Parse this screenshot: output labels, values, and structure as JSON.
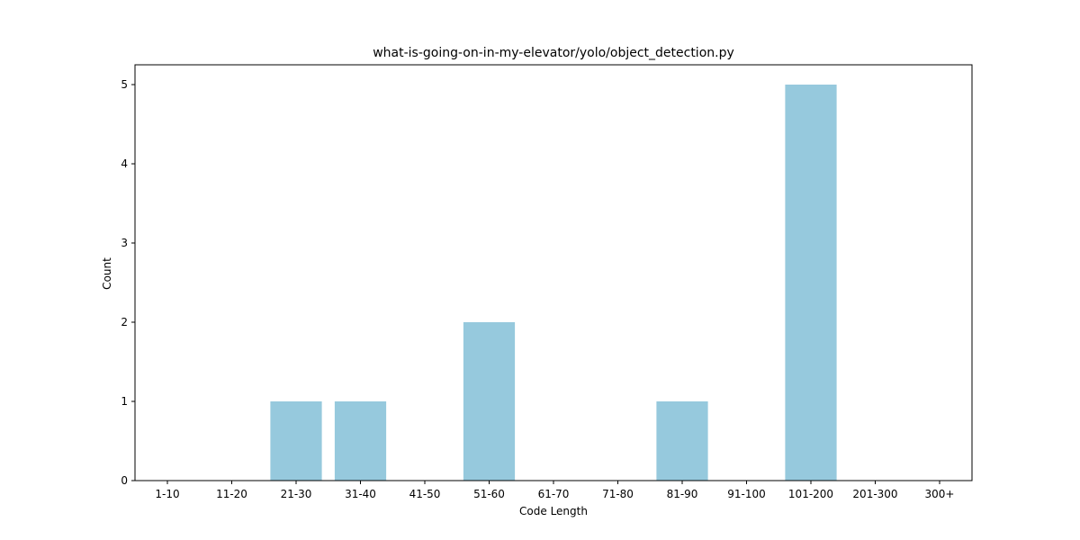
{
  "colors": {
    "bar": "#96c9dd",
    "axis": "#000000",
    "background": "#ffffff"
  },
  "chart_data": {
    "type": "bar",
    "title": "what-is-going-on-in-my-elevator/yolo/object_detection.py",
    "xlabel": "Code Length",
    "ylabel": "Count",
    "categories": [
      "1-10",
      "11-20",
      "21-30",
      "31-40",
      "41-50",
      "51-60",
      "61-70",
      "71-80",
      "81-90",
      "91-100",
      "101-200",
      "201-300",
      "300+"
    ],
    "values": [
      0,
      0,
      1,
      1,
      0,
      2,
      0,
      0,
      1,
      0,
      5,
      0,
      0
    ],
    "yticks": [
      0,
      1,
      2,
      3,
      4,
      5
    ],
    "ylim": [
      0,
      5.25
    ],
    "grid": false,
    "legend": "none"
  }
}
